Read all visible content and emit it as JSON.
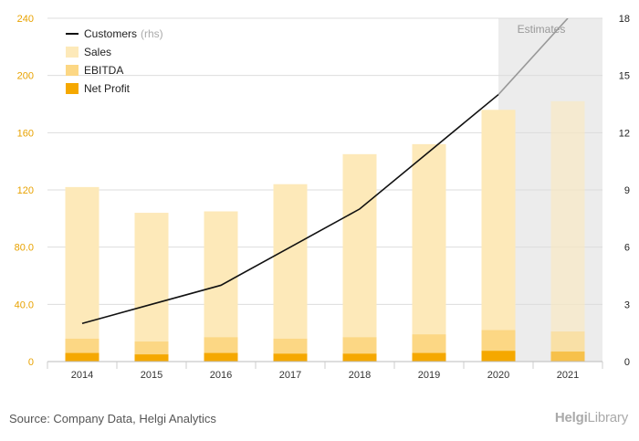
{
  "chart_data": {
    "type": "bar",
    "categories": [
      "2014",
      "2015",
      "2016",
      "2017",
      "2018",
      "2019",
      "2020",
      "2021"
    ],
    "series": [
      {
        "name": "Sales",
        "kind": "bar",
        "axis": "left",
        "color": "#fde9b9",
        "values": [
          122,
          104,
          105,
          124,
          145,
          152,
          176,
          182
        ]
      },
      {
        "name": "EBITDA",
        "kind": "bar",
        "axis": "left",
        "color": "#fcd784",
        "values": [
          16,
          14,
          17,
          16,
          17,
          19,
          22,
          21
        ]
      },
      {
        "name": "Net Profit",
        "kind": "bar",
        "axis": "left",
        "color": "#f5a800",
        "values": [
          6,
          5,
          6,
          5.5,
          5.5,
          6,
          7.5,
          7
        ]
      },
      {
        "name": "Customers",
        "kind": "line",
        "axis": "right",
        "color": "#111111",
        "estimate_color": "#999999",
        "values": [
          2.0,
          3.0,
          4.0,
          6.0,
          8.0,
          11.0,
          14.0,
          18.0
        ]
      }
    ],
    "left_axis": {
      "ticks": [
        "0",
        "40.0",
        "80.0",
        "120",
        "160",
        "200",
        "240"
      ],
      "min": 0,
      "max": 240
    },
    "right_axis": {
      "ticks": [
        "0",
        "3",
        "6",
        "9",
        "12",
        "15",
        "18"
      ],
      "min": 0,
      "max": 18
    },
    "estimate_from_index": 7,
    "estimates_label": "Estimates",
    "legend": {
      "placement": "top-left",
      "items": [
        {
          "label": "Customers",
          "suffix": "(rhs)",
          "swatch": "line",
          "color": "#111111"
        },
        {
          "label": "Sales",
          "swatch": "box",
          "color": "#fde9b9"
        },
        {
          "label": "EBITDA",
          "swatch": "box",
          "color": "#fcd784"
        },
        {
          "label": "Net Profit",
          "swatch": "box",
          "color": "#f5a800"
        }
      ]
    },
    "colors": {
      "left_tick": "#e8a200",
      "right_tick": "#222222",
      "grid": "#dddddd",
      "estimate_shade": "#ececec"
    }
  },
  "footer": {
    "source": "Source: Company Data, Helgi Analytics",
    "logo_bold": "Helgi",
    "logo_rest": "Library"
  }
}
